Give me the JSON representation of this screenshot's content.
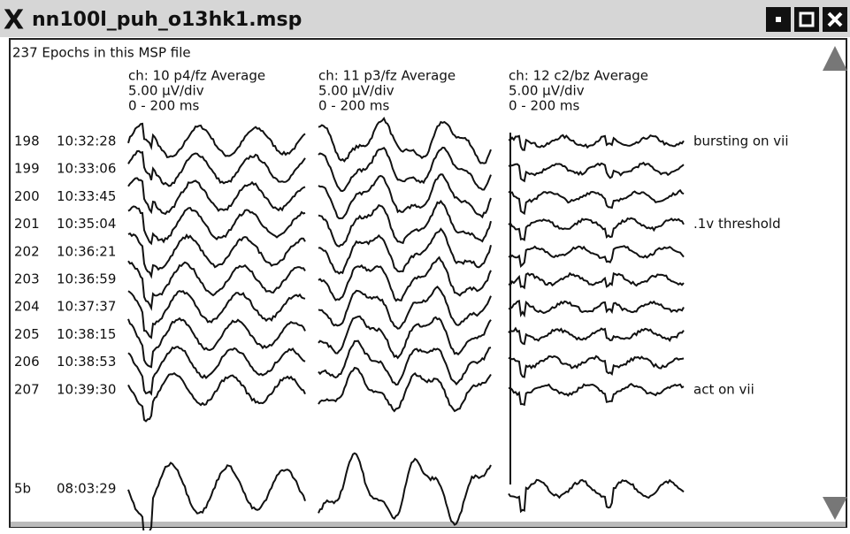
{
  "window": {
    "title": "nn100l_puh_o13hk1.msp"
  },
  "info": "237 Epochs in this MSP file",
  "channels": [
    {
      "name": "ch: 10 p4/fz Average",
      "scale": "5.00 µV/div",
      "range": "0 - 200 ms"
    },
    {
      "name": "ch: 11 p3/fz Average",
      "scale": "5.00 µV/div",
      "range": "0 - 200 ms"
    },
    {
      "name": "ch: 12 c2/bz Average",
      "scale": "5.00 µV/div",
      "range": "0 - 200 ms"
    }
  ],
  "epochs": [
    {
      "id": "198",
      "time": "10:32:28",
      "note": "bursting on vii"
    },
    {
      "id": "199",
      "time": "10:33:06"
    },
    {
      "id": "200",
      "time": "10:33:45"
    },
    {
      "id": "201",
      "time": "10:35:04",
      "note": ".1v threshold"
    },
    {
      "id": "202",
      "time": "10:36:21"
    },
    {
      "id": "203",
      "time": "10:36:59"
    },
    {
      "id": "204",
      "time": "10:37:37"
    },
    {
      "id": "205",
      "time": "10:38:15"
    },
    {
      "id": "206",
      "time": "10:38:53"
    },
    {
      "id": "207",
      "time": "10:39:30",
      "note": "act on vii"
    },
    {
      "id": "5b",
      "time": "08:03:29"
    }
  ]
}
